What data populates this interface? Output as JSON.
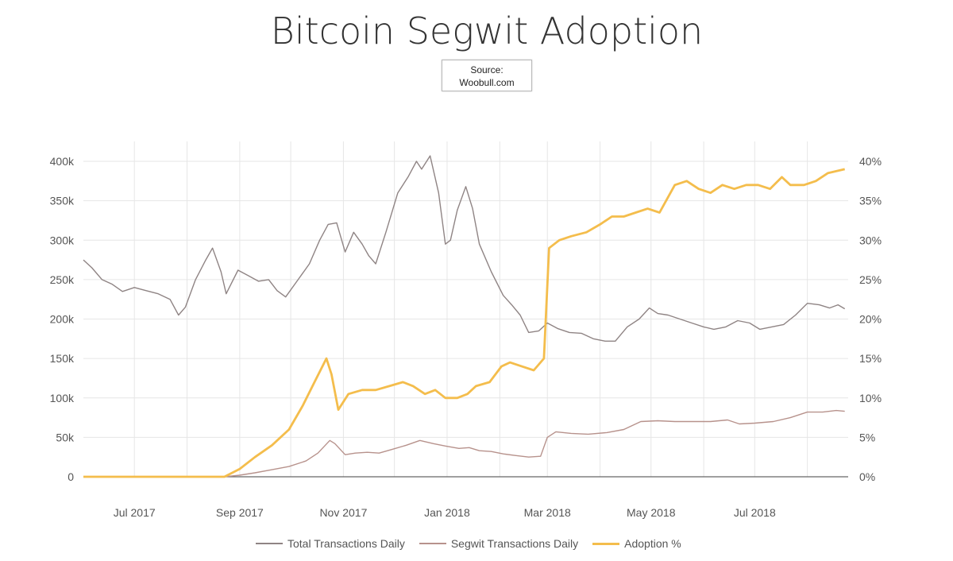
{
  "title": "Bitcoin Segwit Adoption",
  "source": {
    "line1": "Source:",
    "line2": "Woobull.com"
  },
  "colors": {
    "total": "#8f8484",
    "segwit": "#b7928c",
    "adoption": "#f4bd4c",
    "grid": "#e6e6e6",
    "axis": "#555555"
  },
  "chart_data": {
    "type": "line",
    "y_left": {
      "ticks": [
        "0",
        "50k",
        "100k",
        "150k",
        "200k",
        "250k",
        "300k",
        "350k",
        "400k"
      ],
      "range": [
        0,
        420000
      ]
    },
    "y_right": {
      "ticks": [
        "0%",
        "5%",
        "10%",
        "15%",
        "20%",
        "25%",
        "30%",
        "35%",
        "40%"
      ],
      "range": [
        0,
        42
      ]
    },
    "x_ticks": [
      "Jul 2017",
      "Sep 2017",
      "Nov 2017",
      "Jan 2018",
      "Mar 2018",
      "May 2018",
      "Jul 2018"
    ],
    "x_range": [
      "2017-06-01",
      "2018-08-25"
    ],
    "grid": true,
    "legend_position": "bottom",
    "series": [
      {
        "name": "Total Transactions Daily",
        "axis": "left",
        "points": [
          [
            "2017-06-01",
            275000
          ],
          [
            "2017-06-06",
            265000
          ],
          [
            "2017-06-12",
            250000
          ],
          [
            "2017-06-18",
            244000
          ],
          [
            "2017-06-24",
            235000
          ],
          [
            "2017-07-01",
            240000
          ],
          [
            "2017-07-08",
            236000
          ],
          [
            "2017-07-15",
            232000
          ],
          [
            "2017-07-22",
            225000
          ],
          [
            "2017-07-27",
            205000
          ],
          [
            "2017-07-31",
            215000
          ],
          [
            "2017-08-06",
            250000
          ],
          [
            "2017-08-12",
            275000
          ],
          [
            "2017-08-16",
            290000
          ],
          [
            "2017-08-21",
            260000
          ],
          [
            "2017-08-24",
            232000
          ],
          [
            "2017-08-31",
            262000
          ],
          [
            "2017-09-06",
            255000
          ],
          [
            "2017-09-12",
            248000
          ],
          [
            "2017-09-18",
            250000
          ],
          [
            "2017-09-23",
            236000
          ],
          [
            "2017-09-28",
            228000
          ],
          [
            "2017-10-06",
            252000
          ],
          [
            "2017-10-12",
            270000
          ],
          [
            "2017-10-18",
            300000
          ],
          [
            "2017-10-23",
            320000
          ],
          [
            "2017-10-28",
            322000
          ],
          [
            "2017-11-02",
            285000
          ],
          [
            "2017-11-07",
            310000
          ],
          [
            "2017-11-12",
            295000
          ],
          [
            "2017-11-16",
            280000
          ],
          [
            "2017-11-20",
            270000
          ],
          [
            "2017-11-26",
            310000
          ],
          [
            "2017-12-03",
            360000
          ],
          [
            "2017-12-09",
            380000
          ],
          [
            "2017-12-14",
            400000
          ],
          [
            "2017-12-17",
            390000
          ],
          [
            "2017-12-22",
            407000
          ],
          [
            "2017-12-27",
            360000
          ],
          [
            "2017-12-31",
            295000
          ],
          [
            "2018-01-03",
            300000
          ],
          [
            "2018-01-07",
            338000
          ],
          [
            "2018-01-12",
            368000
          ],
          [
            "2018-01-16",
            340000
          ],
          [
            "2018-01-20",
            295000
          ],
          [
            "2018-01-27",
            260000
          ],
          [
            "2018-02-03",
            230000
          ],
          [
            "2018-02-08",
            218000
          ],
          [
            "2018-02-13",
            205000
          ],
          [
            "2018-02-18",
            183000
          ],
          [
            "2018-02-24",
            185000
          ],
          [
            "2018-03-01",
            195000
          ],
          [
            "2018-03-07",
            188000
          ],
          [
            "2018-03-14",
            183000
          ],
          [
            "2018-03-21",
            182000
          ],
          [
            "2018-03-28",
            175000
          ],
          [
            "2018-04-04",
            172000
          ],
          [
            "2018-04-10",
            172000
          ],
          [
            "2018-04-17",
            190000
          ],
          [
            "2018-04-24",
            200000
          ],
          [
            "2018-04-30",
            214000
          ],
          [
            "2018-05-05",
            207000
          ],
          [
            "2018-05-11",
            205000
          ],
          [
            "2018-05-18",
            200000
          ],
          [
            "2018-05-25",
            195000
          ],
          [
            "2018-06-01",
            190000
          ],
          [
            "2018-06-07",
            187000
          ],
          [
            "2018-06-14",
            190000
          ],
          [
            "2018-06-21",
            198000
          ],
          [
            "2018-06-28",
            195000
          ],
          [
            "2018-07-04",
            187000
          ],
          [
            "2018-07-11",
            190000
          ],
          [
            "2018-07-18",
            193000
          ],
          [
            "2018-07-25",
            205000
          ],
          [
            "2018-08-01",
            220000
          ],
          [
            "2018-08-08",
            218000
          ],
          [
            "2018-08-14",
            214000
          ],
          [
            "2018-08-19",
            218000
          ],
          [
            "2018-08-23",
            213000
          ]
        ]
      },
      {
        "name": "Segwit Transactions Daily",
        "axis": "left",
        "points": [
          [
            "2017-06-01",
            0
          ],
          [
            "2017-08-23",
            0
          ],
          [
            "2017-09-01",
            2000
          ],
          [
            "2017-09-10",
            5000
          ],
          [
            "2017-09-20",
            9000
          ],
          [
            "2017-09-30",
            13000
          ],
          [
            "2017-10-10",
            20000
          ],
          [
            "2017-10-17",
            30000
          ],
          [
            "2017-10-24",
            46000
          ],
          [
            "2017-10-27",
            42000
          ],
          [
            "2017-11-02",
            28000
          ],
          [
            "2017-11-08",
            30000
          ],
          [
            "2017-11-15",
            31000
          ],
          [
            "2017-11-22",
            30000
          ],
          [
            "2017-11-30",
            35000
          ],
          [
            "2017-12-08",
            40000
          ],
          [
            "2017-12-16",
            46000
          ],
          [
            "2017-12-24",
            42000
          ],
          [
            "2017-12-31",
            39000
          ],
          [
            "2018-01-08",
            36000
          ],
          [
            "2018-01-14",
            37000
          ],
          [
            "2018-01-20",
            33000
          ],
          [
            "2018-01-27",
            32000
          ],
          [
            "2018-02-03",
            29000
          ],
          [
            "2018-02-10",
            27000
          ],
          [
            "2018-02-18",
            25000
          ],
          [
            "2018-02-25",
            26000
          ],
          [
            "2018-03-01",
            50000
          ],
          [
            "2018-03-06",
            57000
          ],
          [
            "2018-03-15",
            55000
          ],
          [
            "2018-03-25",
            54000
          ],
          [
            "2018-04-05",
            56000
          ],
          [
            "2018-04-15",
            60000
          ],
          [
            "2018-04-25",
            70000
          ],
          [
            "2018-05-05",
            71000
          ],
          [
            "2018-05-15",
            70000
          ],
          [
            "2018-05-25",
            70000
          ],
          [
            "2018-06-05",
            70000
          ],
          [
            "2018-06-15",
            72000
          ],
          [
            "2018-06-22",
            67000
          ],
          [
            "2018-07-01",
            68000
          ],
          [
            "2018-07-12",
            70000
          ],
          [
            "2018-07-22",
            75000
          ],
          [
            "2018-08-01",
            82000
          ],
          [
            "2018-08-10",
            82000
          ],
          [
            "2018-08-18",
            84000
          ],
          [
            "2018-08-23",
            83000
          ]
        ]
      },
      {
        "name": "Adoption %",
        "axis": "right",
        "points": [
          [
            "2017-06-01",
            0
          ],
          [
            "2017-08-23",
            0
          ],
          [
            "2017-09-01",
            1
          ],
          [
            "2017-09-10",
            2.5
          ],
          [
            "2017-09-20",
            4
          ],
          [
            "2017-09-30",
            6
          ],
          [
            "2017-10-08",
            9
          ],
          [
            "2017-10-15",
            12
          ],
          [
            "2017-10-22",
            15
          ],
          [
            "2017-10-25",
            13
          ],
          [
            "2017-10-29",
            8.5
          ],
          [
            "2017-11-04",
            10.5
          ],
          [
            "2017-11-12",
            11
          ],
          [
            "2017-11-20",
            11
          ],
          [
            "2017-11-28",
            11.5
          ],
          [
            "2017-12-06",
            12
          ],
          [
            "2017-12-12",
            11.5
          ],
          [
            "2017-12-19",
            10.5
          ],
          [
            "2017-12-25",
            11
          ],
          [
            "2017-12-31",
            10
          ],
          [
            "2018-01-07",
            10
          ],
          [
            "2018-01-13",
            10.5
          ],
          [
            "2018-01-18",
            11.5
          ],
          [
            "2018-01-26",
            12
          ],
          [
            "2018-02-02",
            14
          ],
          [
            "2018-02-07",
            14.5
          ],
          [
            "2018-02-14",
            14
          ],
          [
            "2018-02-21",
            13.5
          ],
          [
            "2018-02-27",
            15
          ],
          [
            "2018-03-02",
            29
          ],
          [
            "2018-03-08",
            30
          ],
          [
            "2018-03-15",
            30.5
          ],
          [
            "2018-03-24",
            31
          ],
          [
            "2018-04-01",
            32
          ],
          [
            "2018-04-08",
            33
          ],
          [
            "2018-04-15",
            33
          ],
          [
            "2018-04-22",
            33.5
          ],
          [
            "2018-04-29",
            34
          ],
          [
            "2018-05-06",
            33.5
          ],
          [
            "2018-05-15",
            37
          ],
          [
            "2018-05-22",
            37.5
          ],
          [
            "2018-05-29",
            36.5
          ],
          [
            "2018-06-05",
            36
          ],
          [
            "2018-06-12",
            37
          ],
          [
            "2018-06-19",
            36.5
          ],
          [
            "2018-06-26",
            37
          ],
          [
            "2018-07-03",
            37
          ],
          [
            "2018-07-10",
            36.5
          ],
          [
            "2018-07-17",
            38
          ],
          [
            "2018-07-22",
            37
          ],
          [
            "2018-07-30",
            37
          ],
          [
            "2018-08-06",
            37.5
          ],
          [
            "2018-08-13",
            38.5
          ],
          [
            "2018-08-23",
            39
          ]
        ]
      }
    ]
  },
  "legend": [
    {
      "label": "Total Transactions Daily",
      "color": "#8f8484"
    },
    {
      "label": "Segwit Transactions Daily",
      "color": "#b7928c"
    },
    {
      "label": "Adoption %",
      "color": "#f4bd4c"
    }
  ]
}
